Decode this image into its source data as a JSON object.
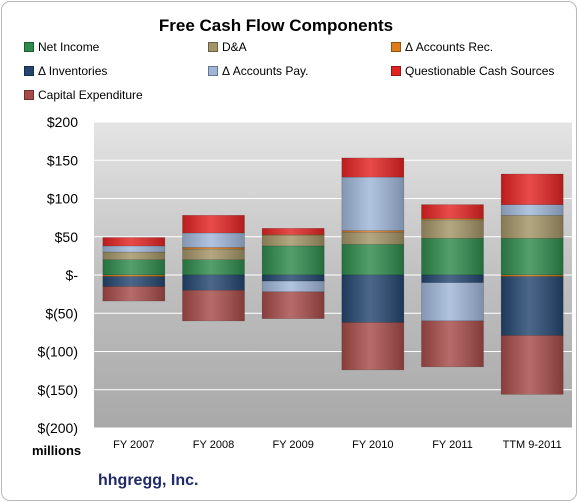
{
  "company": "hhgregg, Inc.",
  "unit_label": "millions",
  "chart_data": {
    "type": "bar",
    "stacked": true,
    "title": "Free Cash Flow Components",
    "categories": [
      "FY 2007",
      "FY 2008",
      "FY 2009",
      "FY 2010",
      "FY 2011",
      "TTM 9-2011"
    ],
    "ylim": [
      -200,
      200
    ],
    "yticks": [
      200,
      150,
      100,
      50,
      0,
      -50,
      -100,
      -150,
      -200
    ],
    "ytick_labels": [
      "$200",
      "$150",
      "$100",
      "$50",
      "$-",
      "$(50)",
      "$(100)",
      "$(150)",
      "$(200)"
    ],
    "grid": true,
    "legend_position": "top",
    "series": [
      {
        "name": "Net Income",
        "color": "#2e8a4c",
        "values": [
          20,
          20,
          38,
          40,
          48,
          48
        ]
      },
      {
        "name": "D&A",
        "color": "#a39466",
        "values": [
          10,
          14,
          14,
          16,
          24,
          30
        ]
      },
      {
        "name": "Δ Accounts Rec.",
        "color": "#e07b1c",
        "values": [
          -2,
          2,
          1,
          2,
          2,
          -2
        ]
      },
      {
        "name": "Δ Inventories",
        "color": "#23456f",
        "values": [
          -13,
          -20,
          -8,
          -62,
          -10,
          -77
        ]
      },
      {
        "name": "Δ Accounts Pay.",
        "color": "#9fb6d8",
        "values": [
          8,
          19,
          -14,
          70,
          -50,
          14
        ]
      },
      {
        "name": "Questionable Cash Sources",
        "color": "#e32322",
        "values": [
          11,
          23,
          8,
          25,
          18,
          40
        ]
      },
      {
        "name": "Capital Expenditure",
        "color": "#a64b48",
        "values": [
          -19,
          -40,
          -35,
          -62,
          -60,
          -77
        ]
      }
    ]
  }
}
